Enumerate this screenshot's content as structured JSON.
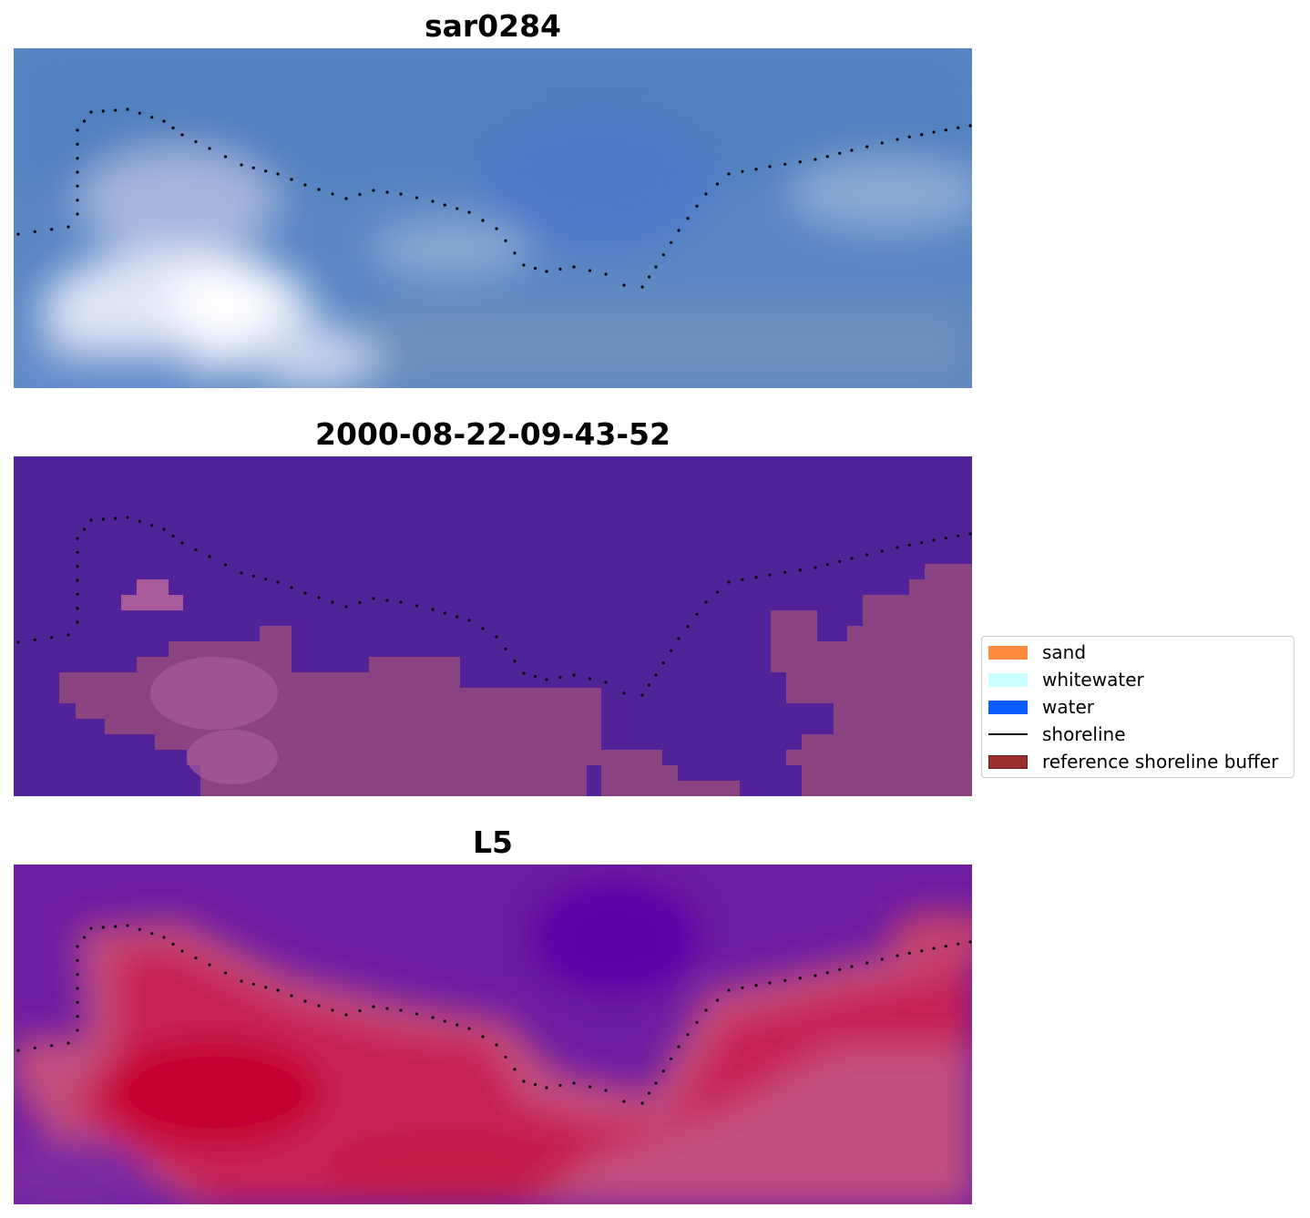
{
  "chart_data": [
    {
      "type": "heatmap",
      "title": "sar0284",
      "image": "rgb-composite",
      "colors": [
        "#5b88c8",
        "#4f7fc0",
        "#8ea8d4",
        "#ffffff",
        "#6e8ebd"
      ]
    },
    {
      "type": "heatmap",
      "title": "2000-08-22-09-43-52",
      "image": "classified-overlay",
      "colors": [
        "#512399",
        "#a95a9a",
        "#8a4380",
        "#783075"
      ]
    },
    {
      "type": "heatmap",
      "title": "L5",
      "image": "index-map",
      "colors": [
        "#6a1aa0",
        "#5a0ea0",
        "#c0204e",
        "#c25080"
      ]
    }
  ],
  "legend": {
    "entries": [
      {
        "label": "sand",
        "color": "#ff8c3c",
        "kind": "patch"
      },
      {
        "label": "whitewater",
        "color": "#c8ffff",
        "kind": "patch"
      },
      {
        "label": "water",
        "color": "#0a5cff",
        "kind": "patch"
      },
      {
        "label": "shoreline",
        "color": "#000000",
        "kind": "line"
      },
      {
        "label": "reference shoreline buffer",
        "color": "#9b2e2e",
        "kind": "patch"
      }
    ]
  }
}
